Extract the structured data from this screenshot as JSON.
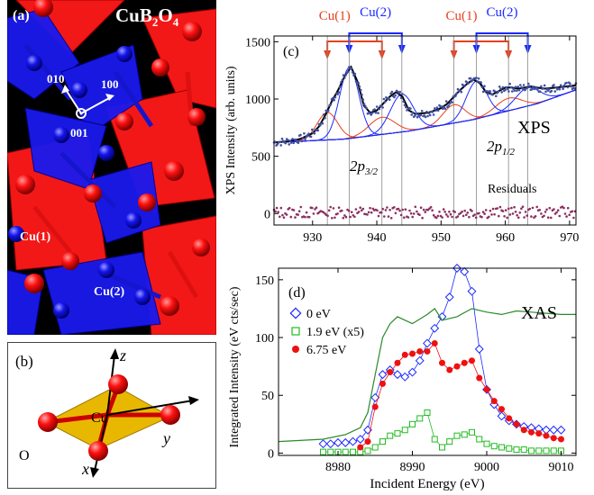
{
  "panel_a": {
    "label": "(a)",
    "formula_main": "CuB",
    "formula_sub1": "2",
    "formula_mid": "O",
    "formula_sub2": "4",
    "axis_010": "010",
    "axis_100": "100",
    "axis_001": "001",
    "site1": "Cu(1)",
    "site2": "Cu(2)",
    "colors": {
      "cu1": "#ff0000",
      "cu2": "#1a1aff",
      "background": "#000000"
    }
  },
  "panel_b": {
    "label": "(b)",
    "axis_z": "z",
    "axis_y": "y",
    "axis_x": "x",
    "center": "Cu",
    "oxygen": "O",
    "colors": {
      "plaquette": "#e8b800",
      "oxygen": "#ff0000"
    }
  },
  "panel_c": {
    "label": "(c)",
    "header_labels": [
      "Cu(1)",
      "Cu(2)",
      "Cu(1)",
      "Cu(2)"
    ],
    "annot_xps": "XPS",
    "annot_p32_main": "2p",
    "annot_p32_sub": "3/2",
    "annot_p12_main": "2p",
    "annot_p12_sub": "1/2",
    "annot_residuals": "Residuals",
    "ylabel": "XPS Intensity (arb. units)",
    "colors": {
      "cu1": "#e8401c",
      "cu2": "#1a2aff",
      "data": "#4050a0",
      "residual": "#8a3060"
    }
  },
  "panel_d": {
    "label": "(d)",
    "annot_xas": "XAS",
    "xlabel": "Incident Energy (eV)",
    "ylabel": "Integrated Intensity (eV cts/sec)",
    "legend": [
      "0 eV",
      "1.9 eV (x5)",
      "6.75 eV"
    ],
    "colors": {
      "s0": "#1a2aff",
      "s1": "#22bb22",
      "s2": "#ee1111",
      "xas": "#2a8a2a"
    }
  },
  "chart_data": [
    {
      "type": "scatter",
      "panel": "c",
      "xlabel": "",
      "ylabel": "XPS Intensity (arb. units)",
      "xlim": [
        924,
        971
      ],
      "ylim": [
        -100,
        1550
      ],
      "xticks": [
        930,
        940,
        950,
        960,
        970
      ],
      "yticks": [
        0,
        500,
        1000,
        1500
      ],
      "peak_markers_cu1": [
        932.3,
        940.8,
        952.0,
        960.5
      ],
      "peak_markers_cu2": [
        935.7,
        943.9,
        955.5,
        963.5
      ],
      "background": {
        "x": [
          924,
          935,
          945,
          955,
          965,
          971
        ],
        "y": [
          620,
          650,
          720,
          820,
          960,
          1080
        ]
      },
      "fit_total": {
        "x": [
          924,
          926,
          928,
          930,
          931,
          932,
          933,
          934,
          935,
          936,
          937,
          938,
          939,
          940,
          941,
          942,
          943,
          944,
          945,
          946,
          948,
          950,
          951,
          952,
          953,
          954,
          955,
          956,
          957,
          958,
          959,
          960,
          961,
          962,
          963,
          964,
          966,
          968,
          971
        ],
        "y": [
          620,
          630,
          650,
          700,
          760,
          860,
          980,
          1080,
          1200,
          1280,
          1150,
          940,
          880,
          900,
          960,
          1020,
          1060,
          1020,
          900,
          870,
          880,
          920,
          960,
          1020,
          1080,
          1130,
          1170,
          1140,
          1060,
          1040,
          1070,
          1100,
          1100,
          1090,
          1100,
          1110,
          1090,
          1100,
          1120
        ]
      },
      "residuals": {
        "x_range": [
          924,
          971
        ],
        "y_range": [
          -40,
          60
        ]
      }
    },
    {
      "type": "line",
      "panel": "d",
      "xlabel": "Incident Energy (eV)",
      "ylabel": "Integrated Intensity (eV cts/sec)",
      "xlim": [
        8972,
        9012
      ],
      "ylim": [
        -2,
        160
      ],
      "xticks": [
        8980,
        8990,
        9000,
        9010
      ],
      "yticks": [
        0,
        50,
        100,
        150
      ],
      "series": [
        {
          "name": "0 eV",
          "x": [
            8978,
            8979,
            8980,
            8981,
            8982,
            8983,
            8984,
            8985,
            8986,
            8987,
            8988,
            8989,
            8990,
            8991,
            8992,
            8993,
            8994,
            8995,
            8996,
            8997,
            8998,
            8999,
            9000,
            9001,
            9002,
            9003,
            9004,
            9005,
            9006,
            9007,
            9008,
            9009,
            9010
          ],
          "y": [
            8,
            8,
            9,
            9,
            10,
            12,
            20,
            48,
            68,
            72,
            68,
            66,
            70,
            80,
            95,
            108,
            118,
            135,
            160,
            157,
            140,
            90,
            55,
            42,
            32,
            28,
            25,
            23,
            22,
            21,
            20,
            20,
            20
          ]
        },
        {
          "name": "1.9 eV (x5)",
          "x": [
            8978,
            8979,
            8980,
            8981,
            8982,
            8983,
            8984,
            8985,
            8986,
            8987,
            8988,
            8989,
            8990,
            8991,
            8992,
            8993,
            8994,
            8995,
            8996,
            8997,
            8998,
            8999,
            9000,
            9001,
            9002,
            9003,
            9004,
            9005,
            9006,
            9007,
            9008,
            9009,
            9010
          ],
          "y": [
            1,
            1,
            1,
            1,
            1,
            1,
            2,
            5,
            10,
            15,
            17,
            20,
            25,
            30,
            35,
            12,
            5,
            10,
            15,
            16,
            18,
            12,
            8,
            6,
            5,
            4,
            3,
            3,
            2,
            2,
            2,
            2,
            2
          ]
        },
        {
          "name": "6.75 eV",
          "x": [
            8983,
            8984,
            8985,
            8986,
            8987,
            8988,
            8989,
            8990,
            8991,
            8992,
            8993,
            8994,
            8995,
            8996,
            8997,
            8998,
            8999,
            9000,
            9001,
            9002,
            9003,
            9004,
            9005,
            9006,
            9007,
            9008,
            9009,
            9010
          ],
          "y": [
            5,
            10,
            40,
            60,
            70,
            78,
            85,
            86,
            88,
            88,
            95,
            78,
            72,
            75,
            78,
            80,
            65,
            55,
            45,
            38,
            30,
            25,
            20,
            18,
            17,
            15,
            13,
            12
          ]
        },
        {
          "name": "XAS",
          "x": [
            8972,
            8978,
            8981,
            8983,
            8984,
            8985,
            8986,
            8987,
            8988,
            8989,
            8990,
            8992,
            8993,
            8994,
            8996,
            8998,
            9000,
            9002,
            9004,
            9006,
            9008,
            9010,
            9012
          ],
          "y": [
            10,
            12,
            16,
            22,
            35,
            68,
            100,
            112,
            118,
            115,
            112,
            120,
            125,
            115,
            118,
            125,
            122,
            120,
            123,
            122,
            121,
            120,
            120
          ]
        }
      ]
    }
  ]
}
